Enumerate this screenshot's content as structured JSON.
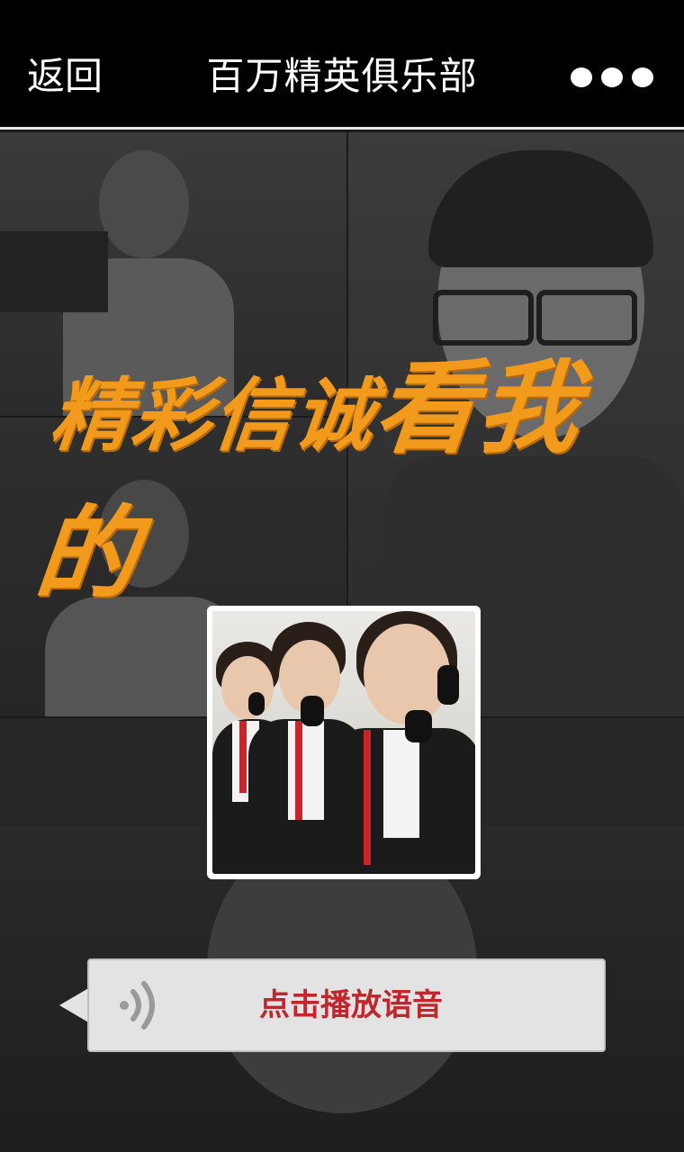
{
  "nav": {
    "back_label": "返回",
    "title": "百万精英俱乐部",
    "more_icon": "more-dots-icon"
  },
  "banner": {
    "text_part1": "精彩信诚",
    "text_part2": "看我的"
  },
  "voice": {
    "label": "点击播放语音",
    "icon": "sound-wave-icon"
  },
  "colors": {
    "accent_orange": "#f29a1c",
    "voice_label_red": "#c0262c",
    "nav_background": "#000000"
  }
}
